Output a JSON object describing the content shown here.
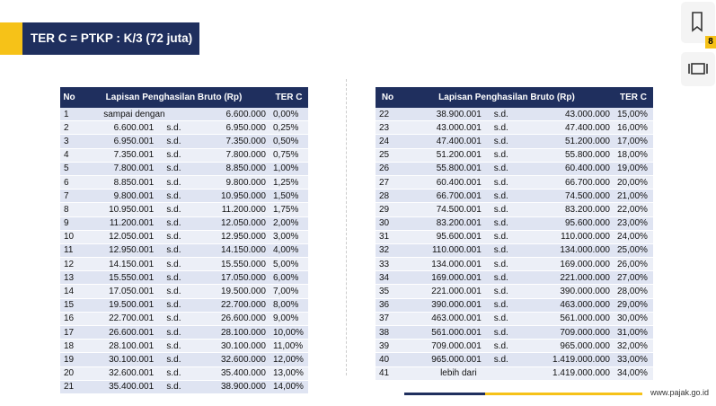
{
  "header": {
    "title": "TER C = PTKP : K/3 (72 juta)"
  },
  "columns": [
    "No",
    "Lapisan Penghasilan Bruto (Rp)",
    "TER C"
  ],
  "tables": [
    {
      "rows": [
        {
          "no": "1",
          "label": "sampai dengan",
          "to": "6.600.000",
          "rate": "0,00%"
        },
        {
          "no": "2",
          "from": "6.600.001",
          "sep": "s.d.",
          "to": "6.950.000",
          "rate": "0,25%"
        },
        {
          "no": "3",
          "from": "6.950.001",
          "sep": "s.d.",
          "to": "7.350.000",
          "rate": "0,50%"
        },
        {
          "no": "4",
          "from": "7.350.001",
          "sep": "s.d.",
          "to": "7.800.000",
          "rate": "0,75%"
        },
        {
          "no": "5",
          "from": "7.800.001",
          "sep": "s.d.",
          "to": "8.850.000",
          "rate": "1,00%"
        },
        {
          "no": "6",
          "from": "8.850.001",
          "sep": "s.d.",
          "to": "9.800.000",
          "rate": "1,25%"
        },
        {
          "no": "7",
          "from": "9.800.001",
          "sep": "s.d.",
          "to": "10.950.000",
          "rate": "1,50%"
        },
        {
          "no": "8",
          "from": "10.950.001",
          "sep": "s.d.",
          "to": "11.200.000",
          "rate": "1,75%"
        },
        {
          "no": "9",
          "from": "11.200.001",
          "sep": "s.d.",
          "to": "12.050.000",
          "rate": "2,00%"
        },
        {
          "no": "10",
          "from": "12.050.001",
          "sep": "s.d.",
          "to": "12.950.000",
          "rate": "3,00%"
        },
        {
          "no": "11",
          "from": "12.950.001",
          "sep": "s.d.",
          "to": "14.150.000",
          "rate": "4,00%"
        },
        {
          "no": "12",
          "from": "14.150.001",
          "sep": "s.d.",
          "to": "15.550.000",
          "rate": "5,00%"
        },
        {
          "no": "13",
          "from": "15.550.001",
          "sep": "s.d.",
          "to": "17.050.000",
          "rate": "6,00%"
        },
        {
          "no": "14",
          "from": "17.050.001",
          "sep": "s.d.",
          "to": "19.500.000",
          "rate": "7,00%"
        },
        {
          "no": "15",
          "from": "19.500.001",
          "sep": "s.d.",
          "to": "22.700.000",
          "rate": "8,00%"
        },
        {
          "no": "16",
          "from": "22.700.001",
          "sep": "s.d.",
          "to": "26.600.000",
          "rate": "9,00%"
        },
        {
          "no": "17",
          "from": "26.600.001",
          "sep": "s.d.",
          "to": "28.100.000",
          "rate": "10,00%"
        },
        {
          "no": "18",
          "from": "28.100.001",
          "sep": "s.d.",
          "to": "30.100.000",
          "rate": "11,00%"
        },
        {
          "no": "19",
          "from": "30.100.001",
          "sep": "s.d.",
          "to": "32.600.000",
          "rate": "12,00%"
        },
        {
          "no": "20",
          "from": "32.600.001",
          "sep": "s.d.",
          "to": "35.400.000",
          "rate": "13,00%"
        },
        {
          "no": "21",
          "from": "35.400.001",
          "sep": "s.d.",
          "to": "38.900.000",
          "rate": "14,00%"
        }
      ]
    },
    {
      "rows": [
        {
          "no": "22",
          "from": "38.900.001",
          "sep": "s.d.",
          "to": "43.000.000",
          "rate": "15,00%"
        },
        {
          "no": "23",
          "from": "43.000.001",
          "sep": "s.d.",
          "to": "47.400.000",
          "rate": "16,00%"
        },
        {
          "no": "24",
          "from": "47.400.001",
          "sep": "s.d.",
          "to": "51.200.000",
          "rate": "17,00%"
        },
        {
          "no": "25",
          "from": "51.200.001",
          "sep": "s.d.",
          "to": "55.800.000",
          "rate": "18,00%"
        },
        {
          "no": "26",
          "from": "55.800.001",
          "sep": "s.d.",
          "to": "60.400.000",
          "rate": "19,00%"
        },
        {
          "no": "27",
          "from": "60.400.001",
          "sep": "s.d.",
          "to": "66.700.000",
          "rate": "20,00%"
        },
        {
          "no": "28",
          "from": "66.700.001",
          "sep": "s.d.",
          "to": "74.500.000",
          "rate": "21,00%"
        },
        {
          "no": "29",
          "from": "74.500.001",
          "sep": "s.d.",
          "to": "83.200.000",
          "rate": "22,00%"
        },
        {
          "no": "30",
          "from": "83.200.001",
          "sep": "s.d.",
          "to": "95.600.000",
          "rate": "23,00%"
        },
        {
          "no": "31",
          "from": "95.600.001",
          "sep": "s.d.",
          "to": "110.000.000",
          "rate": "24,00%"
        },
        {
          "no": "32",
          "from": "110.000.001",
          "sep": "s.d.",
          "to": "134.000.000",
          "rate": "25,00%"
        },
        {
          "no": "33",
          "from": "134.000.001",
          "sep": "s.d.",
          "to": "169.000.000",
          "rate": "26,00%"
        },
        {
          "no": "34",
          "from": "169.000.001",
          "sep": "s.d.",
          "to": "221.000.000",
          "rate": "27,00%"
        },
        {
          "no": "35",
          "from": "221.000.001",
          "sep": "s.d.",
          "to": "390.000.000",
          "rate": "28,00%"
        },
        {
          "no": "36",
          "from": "390.000.001",
          "sep": "s.d.",
          "to": "463.000.000",
          "rate": "29,00%"
        },
        {
          "no": "37",
          "from": "463.000.001",
          "sep": "s.d.",
          "to": "561.000.000",
          "rate": "30,00%"
        },
        {
          "no": "38",
          "from": "561.000.001",
          "sep": "s.d.",
          "to": "709.000.000",
          "rate": "31,00%"
        },
        {
          "no": "39",
          "from": "709.000.001",
          "sep": "s.d.",
          "to": "965.000.000",
          "rate": "32,00%"
        },
        {
          "no": "40",
          "from": "965.000.001",
          "sep": "s.d.",
          "to": "1.419.000.000",
          "rate": "33,00%"
        },
        {
          "no": "41",
          "label": "lebih dari",
          "to": "1.419.000.000",
          "rate": "34,00%"
        }
      ]
    }
  ],
  "footer": {
    "url": "www.pajak.go.id"
  },
  "badge": "8"
}
